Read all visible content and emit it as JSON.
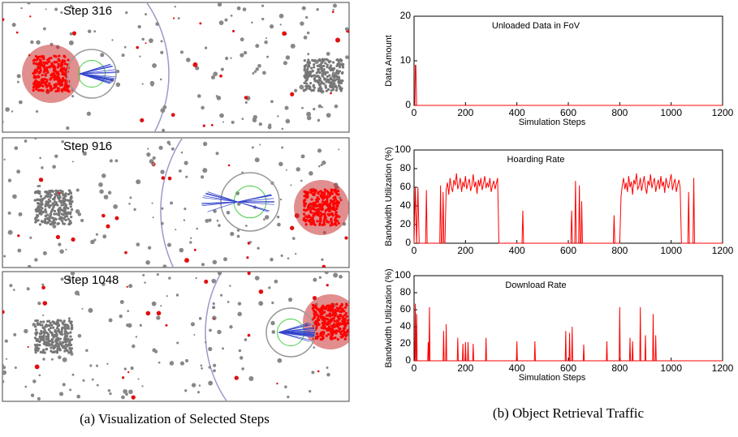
{
  "panels": [
    {
      "label": "Step 316"
    },
    {
      "label": "Step 916"
    },
    {
      "label": "Step 1048"
    }
  ],
  "captions": [
    "(a) Visualization of Selected Steps",
    "(b) Object Retrieval Traffic"
  ],
  "chart_data": [
    {
      "type": "line",
      "title": "Unloaded Data in FoV",
      "xlabel": "Simulation Steps",
      "ylabel": "Data Amount",
      "color": "#ff0000",
      "x": [
        0,
        3,
        5,
        7,
        10,
        1200
      ],
      "values": [
        0,
        0,
        9,
        9,
        0,
        0
      ],
      "xlim": [
        0,
        1200
      ],
      "xticks": [
        0,
        200,
        400,
        600,
        800,
        1000,
        1200
      ],
      "ylim": [
        0,
        20
      ],
      "yticks": [
        0,
        10,
        20
      ]
    },
    {
      "type": "line",
      "title": "Hoarding Rate",
      "ylabel": "Bandwidth Utilization (%)",
      "color": "#ff0000",
      "x": [
        0,
        5,
        10,
        15,
        20,
        45,
        48,
        51,
        100,
        103,
        106,
        110,
        113,
        116,
        120,
        125,
        130,
        135,
        140,
        145,
        150,
        155,
        160,
        165,
        170,
        175,
        180,
        185,
        190,
        195,
        200,
        205,
        210,
        215,
        220,
        225,
        230,
        235,
        240,
        245,
        250,
        255,
        260,
        265,
        270,
        275,
        280,
        285,
        290,
        295,
        300,
        305,
        310,
        315,
        320,
        325,
        330,
        420,
        423,
        426,
        610,
        613,
        616,
        625,
        628,
        631,
        640,
        643,
        646,
        650,
        652,
        655,
        775,
        778,
        781,
        800,
        805,
        810,
        815,
        820,
        825,
        830,
        835,
        840,
        845,
        850,
        855,
        860,
        865,
        870,
        875,
        880,
        885,
        890,
        895,
        900,
        905,
        910,
        915,
        920,
        925,
        930,
        935,
        940,
        945,
        950,
        955,
        960,
        965,
        970,
        975,
        980,
        985,
        990,
        995,
        1000,
        1005,
        1010,
        1015,
        1020,
        1025,
        1030,
        1035,
        1040,
        1065,
        1068,
        1071,
        1085,
        1088,
        1091,
        1200
      ],
      "values": [
        0,
        60,
        0,
        60,
        0,
        0,
        57,
        0,
        0,
        62,
        0,
        0,
        55,
        0,
        0,
        58,
        65,
        52,
        70,
        60,
        55,
        68,
        62,
        75,
        58,
        63,
        70,
        55,
        66,
        60,
        72,
        58,
        64,
        69,
        56,
        62,
        74,
        60,
        66,
        53,
        68,
        61,
        70,
        57,
        64,
        72,
        59,
        65,
        60,
        70,
        55,
        62,
        67,
        58,
        64,
        70,
        0,
        0,
        35,
        0,
        0,
        35,
        0,
        0,
        67,
        0,
        0,
        62,
        0,
        0,
        45,
        0,
        0,
        30,
        0,
        0,
        50,
        62,
        70,
        58,
        65,
        55,
        72,
        60,
        66,
        52,
        68,
        63,
        75,
        58,
        61,
        70,
        56,
        64,
        72,
        60,
        53,
        67,
        62,
        74,
        59,
        65,
        70,
        55,
        63,
        68,
        58,
        72,
        61,
        66,
        54,
        70,
        63,
        59,
        67,
        74,
        57,
        64,
        69,
        55,
        62,
        68,
        60,
        0,
        0,
        55,
        0,
        0,
        70,
        0,
        0
      ],
      "xlim": [
        0,
        1200
      ],
      "xticks": [
        0,
        200,
        400,
        600,
        800,
        1000,
        1200
      ],
      "ylim": [
        0,
        100
      ],
      "yticks": [
        0,
        20,
        40,
        60,
        80,
        100
      ]
    },
    {
      "type": "line",
      "title": "Download Rate",
      "xlabel": "Simulation Steps",
      "ylabel": "Bandwidth Utilization (%)",
      "color": "#ff0000",
      "x": [
        0,
        3,
        5,
        7,
        8,
        10,
        12,
        53,
        55,
        57,
        58,
        60,
        62,
        113,
        115,
        117,
        123,
        125,
        127,
        168,
        170,
        172,
        188,
        190,
        192,
        198,
        200,
        202,
        208,
        210,
        212,
        228,
        230,
        232,
        278,
        280,
        282,
        398,
        400,
        402,
        468,
        470,
        472,
        588,
        590,
        592,
        603,
        605,
        607,
        613,
        615,
        617,
        658,
        660,
        662,
        748,
        750,
        752,
        798,
        800,
        802,
        838,
        840,
        842,
        848,
        850,
        852,
        878,
        880,
        882,
        898,
        900,
        902,
        928,
        930,
        932,
        938,
        940,
        942,
        1200
      ],
      "values": [
        0,
        0,
        67,
        0,
        0,
        55,
        0,
        0,
        22,
        0,
        0,
        63,
        0,
        0,
        35,
        0,
        0,
        43,
        0,
        0,
        27,
        0,
        0,
        20,
        0,
        0,
        22,
        0,
        0,
        22,
        0,
        0,
        20,
        0,
        0,
        27,
        0,
        0,
        23,
        0,
        0,
        23,
        0,
        0,
        35,
        0,
        0,
        33,
        0,
        0,
        40,
        0,
        0,
        19,
        0,
        0,
        23,
        0,
        0,
        63,
        0,
        0,
        27,
        0,
        0,
        23,
        0,
        0,
        63,
        0,
        0,
        30,
        0,
        0,
        55,
        0,
        0,
        30,
        0,
        0
      ],
      "xlim": [
        0,
        1200
      ],
      "xticks": [
        0,
        200,
        400,
        600,
        800,
        1000,
        1200
      ],
      "ylim": [
        0,
        100
      ],
      "yticks": [
        0,
        20,
        40,
        60,
        80,
        100
      ]
    }
  ]
}
